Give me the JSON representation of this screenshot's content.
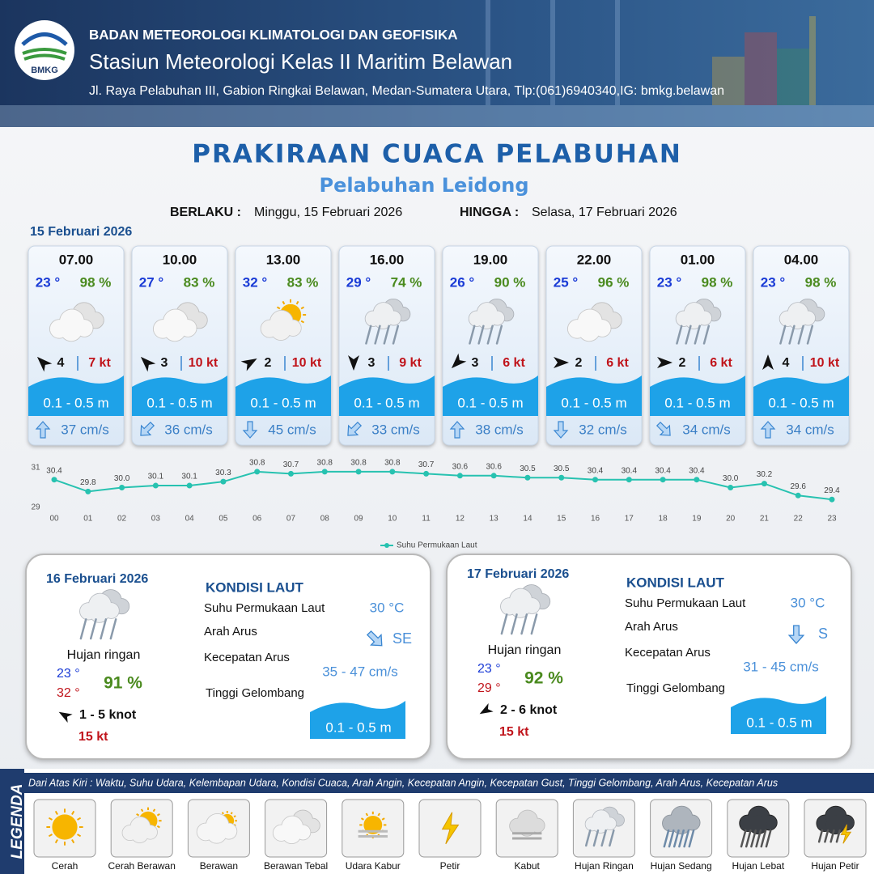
{
  "header": {
    "logo_text": "BMKG",
    "agency": "BADAN METEOROLOGI KLIMATOLOGI DAN GEOFISIKA",
    "station": "Stasiun Meteorologi Kelas II Maritim Belawan",
    "address": "Jl. Raya Pelabuhan III, Gabion Ringkai Belawan, Medan-Sumatera Utara, Tlp:(061)6940340,IG: bmkg.belawan"
  },
  "title": "PRAKIRAAN CUACA PELABUHAN",
  "subtitle": "Pelabuhan Leidong",
  "validity": {
    "from_label": "BERLAKU :",
    "from": "Minggu, 15 Februari 2026",
    "until_label": "HINGGA :",
    "until": "Selasa, 17 Februari 2026"
  },
  "day1_date": "15 Februari 2026",
  "hourly": [
    {
      "time": "07.00",
      "temp": "23 °",
      "humidity": "98 %",
      "weather": "Berawan Tebal",
      "wind_dir_deg": -45,
      "wind": "4",
      "gust": "7 kt",
      "wave": "0.1 - 0.5 m",
      "current_dir_deg": 0,
      "current": "37 cm/s"
    },
    {
      "time": "10.00",
      "temp": "27 °",
      "humidity": "83 %",
      "weather": "Berawan Tebal",
      "wind_dir_deg": -45,
      "wind": "3",
      "gust": "10 kt",
      "wave": "0.1 - 0.5 m",
      "current_dir_deg": 225,
      "current": "36 cm/s"
    },
    {
      "time": "13.00",
      "temp": "32 °",
      "humidity": "83 %",
      "weather": "Cerah Berawan",
      "wind_dir_deg": 60,
      "wind": "2",
      "gust": "10 kt",
      "wave": "0.1 - 0.5 m",
      "current_dir_deg": 180,
      "current": "45 cm/s"
    },
    {
      "time": "16.00",
      "temp": "29 °",
      "humidity": "74 %",
      "weather": "Hujan Ringan",
      "wind_dir_deg": 180,
      "wind": "3",
      "gust": "9 kt",
      "wave": "0.1 - 0.5 m",
      "current_dir_deg": 225,
      "current": "33 cm/s"
    },
    {
      "time": "19.00",
      "temp": "26 °",
      "humidity": "90 %",
      "weather": "Hujan Ringan",
      "wind_dir_deg": 225,
      "wind": "3",
      "gust": "6 kt",
      "wave": "0.1 - 0.5 m",
      "current_dir_deg": 0,
      "current": "38 cm/s"
    },
    {
      "time": "22.00",
      "temp": "25 °",
      "humidity": "96 %",
      "weather": "Berawan Tebal",
      "wind_dir_deg": 90,
      "wind": "2",
      "gust": "6 kt",
      "wave": "0.1 - 0.5 m",
      "current_dir_deg": 180,
      "current": "32 cm/s"
    },
    {
      "time": "01.00",
      "temp": "23 °",
      "humidity": "98 %",
      "weather": "Hujan Ringan",
      "wind_dir_deg": 90,
      "wind": "2",
      "gust": "6 kt",
      "wave": "0.1 - 0.5 m",
      "current_dir_deg": 135,
      "current": "34 cm/s"
    },
    {
      "time": "04.00",
      "temp": "23 °",
      "humidity": "98 %",
      "weather": "Hujan Ringan",
      "wind_dir_deg": 0,
      "wind": "4",
      "gust": "10 kt",
      "wave": "0.1 - 0.5 m",
      "current_dir_deg": 0,
      "current": "34 cm/s"
    }
  ],
  "chart_data": {
    "type": "line",
    "categories": [
      "00",
      "01",
      "02",
      "03",
      "04",
      "05",
      "06",
      "07",
      "08",
      "09",
      "10",
      "11",
      "12",
      "13",
      "14",
      "15",
      "16",
      "17",
      "18",
      "19",
      "20",
      "21",
      "22",
      "23"
    ],
    "series": [
      {
        "name": "Suhu Permukaan Laut",
        "color": "#27c2b0",
        "values": [
          30.4,
          29.8,
          30.0,
          30.1,
          30.1,
          30.3,
          30.8,
          30.7,
          30.8,
          30.8,
          30.8,
          30.7,
          30.6,
          30.6,
          30.5,
          30.5,
          30.4,
          30.4,
          30.4,
          30.4,
          30.0,
          30.2,
          29.6,
          29.4
        ],
        "value_labels": [
          "30.4",
          "29.8",
          "30.0",
          "30.1",
          "30.1",
          "30.3",
          "30.8",
          "30.7",
          "30.8",
          "30.8",
          "30.8",
          "30.7",
          "30.6",
          "30.6",
          "30.5",
          "30.5",
          "30.4",
          "30.4",
          "30.4",
          "30.4",
          "30.0",
          "30.2",
          "29.6",
          "29.4"
        ]
      }
    ],
    "ylim": [
      29,
      31
    ],
    "yticks": [
      29,
      31
    ],
    "grid": false
  },
  "days": [
    {
      "date": "16 Februari 2026",
      "weather": "Hujan ringan",
      "temp_min": "23 °",
      "temp_max": "32 °",
      "humidity": "91 %",
      "wind_dir_deg": -60,
      "wind": "1 - 5 knot",
      "gust": "15 kt",
      "sea_title": "KONDISI LAUT",
      "sst_label": "Suhu Permukaan Laut",
      "sst": "30 °C",
      "current_dir_label": "Arah Arus",
      "current_dir_deg": 135,
      "current_dir": "SE",
      "current_speed_label": "Kecepatan Arus",
      "current_speed": "35 - 47 cm/s",
      "wave_label": "Tinggi Gelombang",
      "wave": "0.1 - 0.5 m"
    },
    {
      "date": "17 Februari 2026",
      "weather": "Hujan ringan",
      "temp_min": "23 °",
      "temp_max": "29 °",
      "humidity": "92 %",
      "wind_dir_deg": 240,
      "wind": "2 - 6 knot",
      "gust": "15 kt",
      "sea_title": "KONDISI LAUT",
      "sst_label": "Suhu Permukaan Laut",
      "sst": "30 °C",
      "current_dir_label": "Arah Arus",
      "current_dir_deg": 180,
      "current_dir": "S",
      "current_speed_label": "Kecepatan Arus",
      "current_speed": "31  - 45 cm/s",
      "wave_label": "Tinggi Gelombang",
      "wave": "0.1 - 0.5 m"
    }
  ],
  "legend": {
    "title": "LEGENDA",
    "caption": "Dari Atas Kiri : Waktu, Suhu Udara, Kelembapan Udara, Kondisi Cuaca, Arah Angin, Kecepatan Angin, Kecepatan Gust, Tinggi Gelombang, Arah Arus, Kecepatan Arus",
    "items": [
      "Cerah",
      "Cerah Berawan",
      "Berawan",
      "Berawan Tebal",
      "Udara Kabur",
      "Petir",
      "Kabut",
      "Hujan Ringan",
      "Hujan Sedang",
      "Hujan Lebat",
      "Hujan Petir"
    ]
  }
}
